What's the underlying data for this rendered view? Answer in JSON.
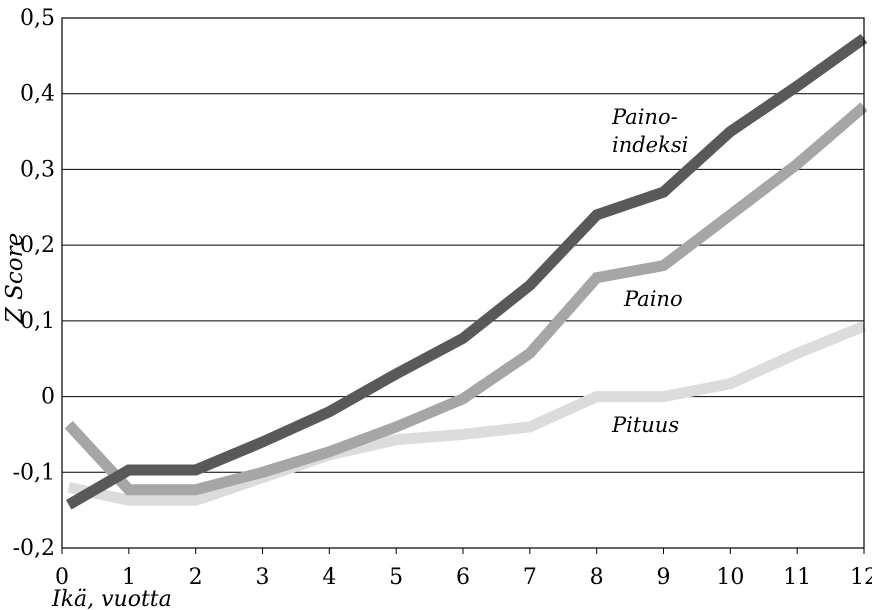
{
  "chart_data": {
    "type": "line",
    "xlabel": "Ikä, vuotta",
    "ylabel": "Z Score",
    "xlim": [
      0,
      12
    ],
    "ylim": [
      -0.2,
      0.5
    ],
    "x_ticks": [
      0,
      1,
      2,
      3,
      4,
      5,
      6,
      7,
      8,
      9,
      10,
      11,
      12
    ],
    "y_ticks": [
      -0.2,
      -0.1,
      0,
      0.1,
      0.2,
      0.3,
      0.4,
      0.5
    ],
    "x_tick_labels": [
      "0",
      "1",
      "2",
      "3",
      "4",
      "5",
      "6",
      "7",
      "8",
      "9",
      "10",
      "11",
      "12"
    ],
    "y_tick_labels": [
      "-0,2",
      "-0,1",
      "0",
      "0,1",
      "0,2",
      "0,3",
      "0,4",
      "0,5"
    ],
    "grid": "horizontal",
    "series": [
      {
        "name": "Paino-indeksi",
        "label_lines": [
          "Paino-",
          "indeksi"
        ],
        "color": "#595959",
        "x": [
          0.1,
          1,
          2,
          3,
          4,
          5,
          6,
          7,
          8,
          9,
          10,
          11,
          12
        ],
        "y": [
          -0.143,
          -0.097,
          -0.097,
          -0.06,
          -0.02,
          0.03,
          0.077,
          0.147,
          0.24,
          0.27,
          0.35,
          0.41,
          0.473
        ]
      },
      {
        "name": "Paino",
        "label_lines": [
          "Paino"
        ],
        "color": "#a6a6a6",
        "x": [
          0.1,
          1,
          2,
          3,
          4,
          5,
          6,
          7,
          8,
          9,
          10,
          11,
          12
        ],
        "y": [
          -0.037,
          -0.123,
          -0.123,
          -0.1,
          -0.073,
          -0.04,
          -0.003,
          0.057,
          0.157,
          0.173,
          0.24,
          0.307,
          0.383
        ]
      },
      {
        "name": "Pituus",
        "label_lines": [
          "Pituus"
        ],
        "color": "#dcdcdc",
        "x": [
          0.1,
          1,
          2,
          3,
          4,
          5,
          6,
          7,
          8,
          9,
          10,
          11,
          12
        ],
        "y": [
          -0.12,
          -0.137,
          -0.137,
          -0.107,
          -0.077,
          -0.057,
          -0.05,
          -0.04,
          0,
          0,
          0.017,
          0.057,
          0.093
        ]
      }
    ]
  }
}
